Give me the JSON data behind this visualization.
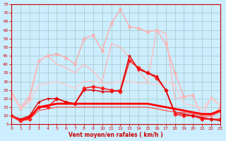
{
  "xlabel": "Vent moyen/en rafales ( km/h )",
  "xlim": [
    0,
    23
  ],
  "ylim": [
    5,
    75
  ],
  "yticks": [
    5,
    10,
    15,
    20,
    25,
    30,
    35,
    40,
    45,
    50,
    55,
    60,
    65,
    70,
    75
  ],
  "xticks": [
    0,
    1,
    2,
    3,
    4,
    5,
    6,
    7,
    8,
    9,
    10,
    11,
    12,
    13,
    14,
    15,
    16,
    17,
    18,
    19,
    20,
    21,
    22,
    23
  ],
  "background_color": "#cceeff",
  "grid_color": "#aacccc",
  "series": [
    {
      "x": [
        0,
        1,
        2,
        3,
        4,
        5,
        6,
        7,
        8,
        9,
        10,
        11,
        12,
        13,
        14,
        15,
        16,
        17,
        18,
        19,
        20,
        21,
        22,
        23
      ],
      "y": [
        23,
        14,
        20,
        42,
        45,
        46,
        44,
        40,
        55,
        57,
        48,
        64,
        72,
        62,
        61,
        59,
        60,
        52,
        35,
        21,
        22,
        9,
        10,
        15
      ],
      "color": "#ffaaaa",
      "lw": 1.0,
      "marker": "x",
      "ms": 3
    },
    {
      "x": [
        0,
        1,
        2,
        3,
        4,
        5,
        6,
        7,
        8,
        9,
        10,
        11,
        12,
        13,
        14,
        15,
        16,
        17,
        18,
        19,
        20,
        21,
        22,
        23
      ],
      "y": [
        24,
        15,
        22,
        42,
        45,
        40,
        38,
        35,
        40,
        36,
        30,
        52,
        50,
        44,
        36,
        30,
        60,
        58,
        20,
        21,
        22,
        9,
        21,
        16
      ],
      "color": "#ffbbbb",
      "lw": 1.0,
      "marker": null,
      "ms": 0
    },
    {
      "x": [
        0,
        1,
        2,
        3,
        4,
        5,
        6,
        7,
        8,
        9,
        10,
        11,
        12,
        13,
        14,
        15,
        16,
        17,
        18,
        19,
        20,
        21,
        22,
        23
      ],
      "y": [
        23,
        14,
        18,
        28,
        29,
        30,
        28,
        26,
        30,
        30,
        29,
        29,
        30,
        30,
        29,
        29,
        28,
        30,
        28,
        17,
        16,
        14,
        20,
        16
      ],
      "color": "#ffcccc",
      "lw": 1.0,
      "marker": null,
      "ms": 0
    },
    {
      "x": [
        0,
        1,
        2,
        3,
        4,
        5,
        6,
        7,
        8,
        9,
        10,
        11,
        12,
        13,
        14,
        15,
        16,
        17,
        18,
        19,
        20,
        21,
        22,
        23
      ],
      "y": [
        10,
        7,
        8,
        15,
        15,
        20,
        18,
        17,
        26,
        27,
        26,
        25,
        24,
        42,
        38,
        35,
        32,
        25,
        11,
        10,
        10,
        8,
        8,
        8
      ],
      "color": "#ff2222",
      "lw": 1.2,
      "marker": "D",
      "ms": 2.5
    },
    {
      "x": [
        0,
        1,
        2,
        3,
        4,
        5,
        6,
        7,
        8,
        9,
        10,
        11,
        12,
        13,
        14,
        15,
        16,
        17,
        18,
        19,
        20,
        21,
        22,
        23
      ],
      "y": [
        10,
        8,
        10,
        18,
        20,
        20,
        18,
        17,
        25,
        25,
        24,
        24,
        25,
        45,
        37,
        35,
        33,
        25,
        12,
        11,
        10,
        9,
        8,
        7
      ],
      "color": "#dd0000",
      "lw": 1.0,
      "marker": "+",
      "ms": 3
    },
    {
      "x": [
        0,
        1,
        2,
        3,
        4,
        5,
        6,
        7,
        8,
        9,
        10,
        11,
        12,
        13,
        14,
        15,
        16,
        17,
        18,
        19,
        20,
        21,
        22,
        23
      ],
      "y": [
        10,
        7,
        9,
        15,
        16,
        17,
        17,
        17,
        17,
        17,
        17,
        17,
        17,
        17,
        17,
        17,
        16,
        15,
        14,
        13,
        12,
        11,
        11,
        13
      ],
      "color": "#ff0000",
      "lw": 2.0,
      "marker": null,
      "ms": 0
    },
    {
      "x": [
        0,
        1,
        2,
        3,
        4,
        5,
        6,
        7,
        8,
        9,
        10,
        11,
        12,
        13,
        14,
        15,
        16,
        17,
        18,
        19,
        20,
        21,
        22,
        23
      ],
      "y": [
        10,
        7,
        8,
        13,
        14,
        15,
        15,
        15,
        15,
        15,
        15,
        15,
        15,
        15,
        15,
        15,
        14,
        13,
        12,
        12,
        11,
        10,
        10,
        12
      ],
      "color": "#ff4444",
      "lw": 0.8,
      "marker": null,
      "ms": 0
    }
  ]
}
